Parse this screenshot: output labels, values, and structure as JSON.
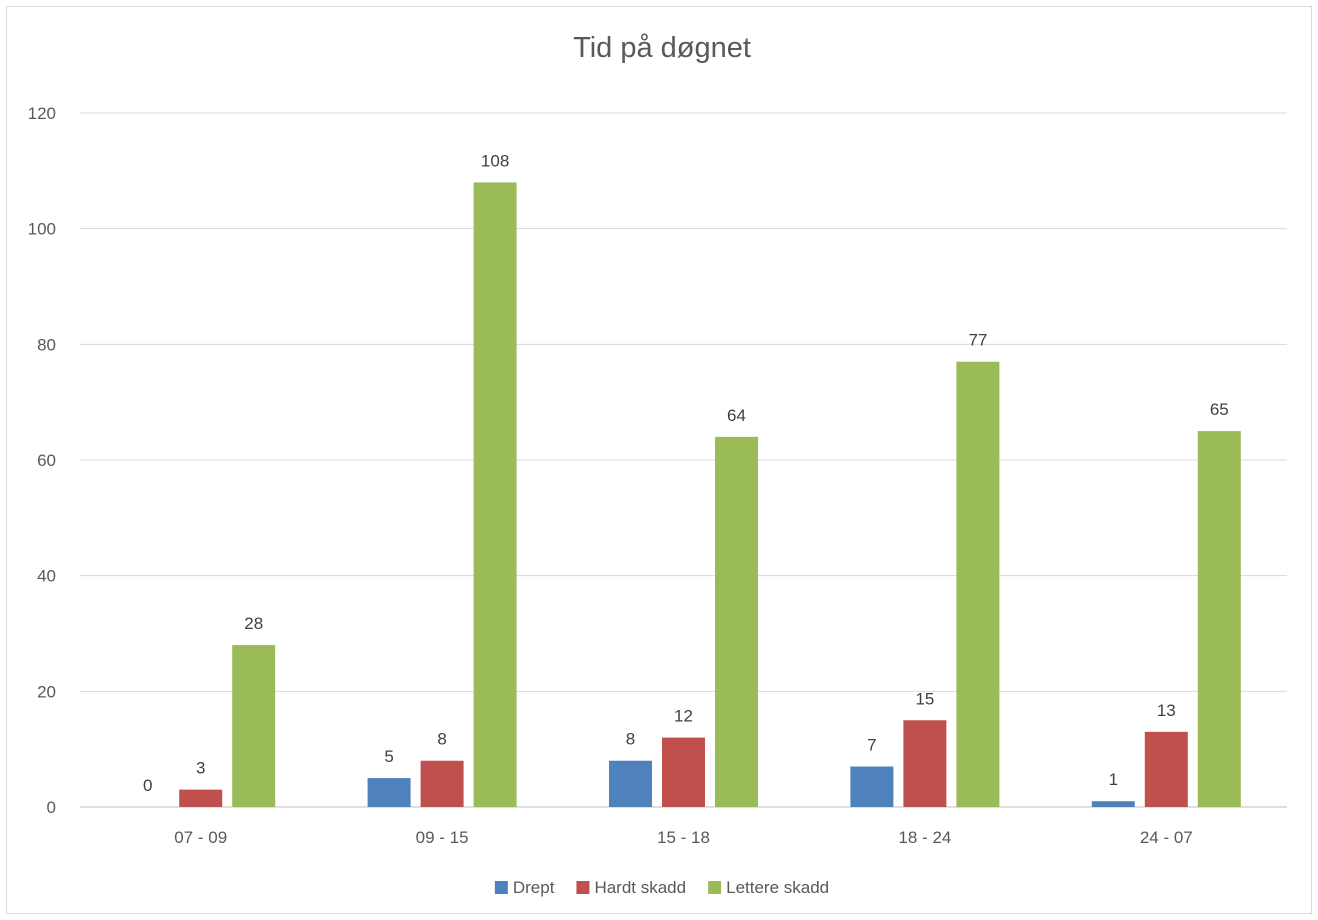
{
  "chart_data": {
    "type": "bar",
    "title": "Tid på døgnet",
    "xlabel": "",
    "ylabel": "",
    "categories": [
      "07 - 09",
      "09 - 15",
      "15 - 18",
      "18 - 24",
      "24 - 07"
    ],
    "series": [
      {
        "name": "Drept",
        "color": "#4f81bd",
        "values": [
          0,
          5,
          8,
          7,
          1
        ]
      },
      {
        "name": "Hardt skadd",
        "color": "#c0504d",
        "values": [
          3,
          8,
          12,
          15,
          13
        ]
      },
      {
        "name": "Lettere skadd",
        "color": "#9bbb59",
        "values": [
          28,
          108,
          64,
          77,
          65
        ]
      }
    ],
    "ylim": [
      0,
      120
    ],
    "yticks": [
      0,
      20,
      40,
      60,
      80,
      100,
      120
    ],
    "grid": true,
    "legend_position": "bottom",
    "data_labels": true
  }
}
